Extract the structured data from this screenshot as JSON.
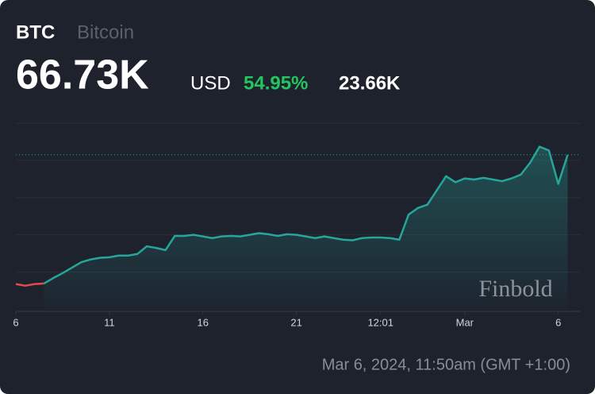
{
  "header": {
    "symbol": "BTC",
    "name": "Bitcoin",
    "price": "66.73K",
    "currency": "USD",
    "change_percent": "54.95%",
    "change": "23.66K"
  },
  "chart_data": {
    "type": "line",
    "xlim": [
      0,
      30.2
    ],
    "xticks": [
      {
        "value": 0,
        "label": "6"
      },
      {
        "value": 5,
        "label": "11"
      },
      {
        "value": 10,
        "label": "16"
      },
      {
        "value": 15,
        "label": "21"
      },
      {
        "value": 19.5,
        "label": "12:01"
      },
      {
        "value": 24,
        "label": "Mar"
      },
      {
        "value": 29,
        "label": "6"
      }
    ],
    "ylim": [
      38.4,
      72.5
    ],
    "yticks": [
      45.3,
      52.1,
      58.9,
      65.7,
      72.5
    ],
    "grid": true,
    "reference_line": 66.73,
    "series": [
      {
        "color": "#e5484d",
        "x": [
          0,
          0.5,
          1,
          1.5
        ],
        "values": [
          43.1,
          42.8,
          43.1,
          43.2
        ]
      },
      {
        "color": "#26a69a",
        "x": [
          1.5,
          2,
          2.5,
          3,
          3.5,
          4,
          4.5,
          5,
          5.5,
          6,
          6.5,
          7,
          7.5,
          8,
          8.5,
          9,
          9.5,
          10,
          10.5,
          11,
          11.5,
          12,
          12.5,
          13,
          13.5,
          14,
          14.5,
          15,
          15.5,
          16,
          16.5,
          17,
          17.5,
          18,
          18.5,
          19,
          19.5,
          20,
          20.5,
          21,
          21.5,
          22,
          22.5,
          23,
          23.5,
          24,
          24.5,
          25,
          25.5,
          26,
          26.5,
          27,
          27.5,
          28,
          28.5,
          29,
          29.5
        ],
        "values": [
          43.2,
          44.2,
          45.1,
          46.1,
          47.1,
          47.6,
          47.9,
          48.0,
          48.3,
          48.3,
          48.6,
          50.0,
          49.7,
          49.3,
          51.9,
          51.9,
          52.1,
          51.8,
          51.5,
          51.8,
          51.9,
          51.8,
          52.1,
          52.4,
          52.2,
          51.9,
          52.2,
          52.1,
          51.8,
          51.5,
          51.8,
          51.5,
          51.2,
          51.1,
          51.5,
          51.6,
          51.6,
          51.5,
          51.2,
          55.8,
          57.0,
          57.6,
          60.2,
          62.8,
          61.7,
          62.4,
          62.2,
          62.5,
          62.2,
          61.9,
          62.4,
          63.1,
          65.3,
          68.2,
          67.5,
          61.4,
          66.7
        ]
      }
    ],
    "watermark": "Finbold"
  },
  "footer": {
    "timestamp": "Mar 6, 2024, 11:50am (GMT +1:00)"
  }
}
